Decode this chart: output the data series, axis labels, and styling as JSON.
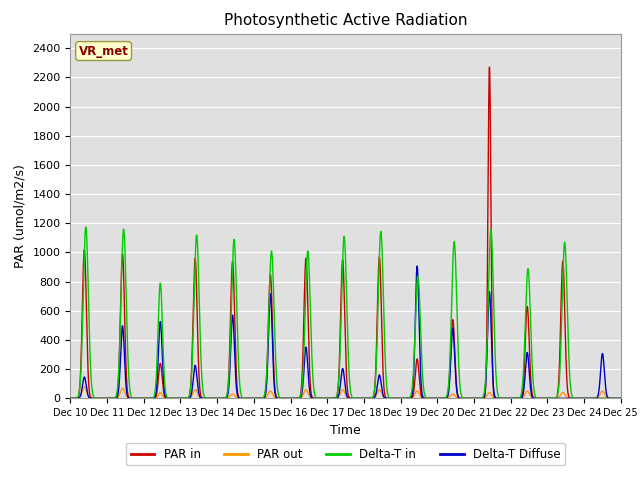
{
  "title": "Photosynthetic Active Radiation",
  "xlabel": "Time",
  "ylabel": "PAR (umol/m2/s)",
  "ylim": [
    0,
    2500
  ],
  "yticks": [
    0,
    200,
    400,
    600,
    800,
    1000,
    1200,
    1400,
    1600,
    1800,
    2000,
    2200,
    2400
  ],
  "background_color": "#e0e0e0",
  "legend_labels": [
    "PAR in",
    "PAR out",
    "Delta-T in",
    "Delta-T Diffuse"
  ],
  "legend_colors": [
    "#cc0000",
    "#ff9900",
    "#00cc00",
    "#0000cc"
  ],
  "station_label": "VR_met",
  "station_label_color": "#880000",
  "station_box_color": "#ffffcc",
  "x_tick_labels": [
    "Dec 10",
    "Dec 11",
    "Dec 12",
    "Dec 13",
    "Dec 14",
    "Dec 15",
    "Dec 16",
    "Dec 17",
    "Dec 18",
    "Dec 19",
    "Dec 20",
    "Dec 21",
    "Dec 22",
    "Dec 23",
    "Dec 24",
    "Dec 25"
  ],
  "n_days": 15,
  "colors": {
    "PAR_in": "#cc0000",
    "PAR_out": "#ff9900",
    "Delta_T_in": "#00cc00",
    "Delta_T_Diffuse": "#0000cc"
  },
  "par_in_peaks": [
    1020,
    990,
    240,
    960,
    940,
    850,
    960,
    950,
    970,
    270,
    540,
    2270,
    630,
    940,
    0
  ],
  "par_out_peaks": [
    80,
    70,
    40,
    60,
    30,
    50,
    60,
    60,
    60,
    50,
    30,
    40,
    50,
    40,
    50
  ],
  "dt_in_peaks": [
    1175,
    1160,
    790,
    1120,
    1090,
    1010,
    1010,
    1110,
    1145,
    840,
    1075,
    1160,
    890,
    1070,
    0
  ],
  "dt_diff_peaks": [
    100,
    340,
    360,
    155,
    390,
    490,
    240,
    140,
    110,
    620,
    330,
    500,
    215,
    0,
    210
  ],
  "par_in_offsets": [
    0.38,
    0.42,
    0.45,
    0.4,
    0.42,
    0.45,
    0.42,
    0.42,
    0.42,
    0.45,
    0.42,
    0.42,
    0.45,
    0.42,
    0.5
  ],
  "dt_in_offsets": [
    0.42,
    0.45,
    0.45,
    0.44,
    0.46,
    0.48,
    0.47,
    0.46,
    0.46,
    0.47,
    0.46,
    0.46,
    0.47,
    0.47,
    0.5
  ],
  "par_in_widths": [
    0.055,
    0.055,
    0.05,
    0.055,
    0.055,
    0.055,
    0.055,
    0.055,
    0.055,
    0.05,
    0.055,
    0.04,
    0.055,
    0.055,
    0.05
  ],
  "dt_in_widths": [
    0.07,
    0.07,
    0.06,
    0.07,
    0.07,
    0.07,
    0.07,
    0.07,
    0.07,
    0.07,
    0.07,
    0.07,
    0.07,
    0.07,
    0.07
  ],
  "dt_diff_widths": [
    0.04,
    0.04,
    0.04,
    0.04,
    0.04,
    0.04,
    0.04,
    0.04,
    0.04,
    0.04,
    0.04,
    0.04,
    0.04,
    0.04,
    0.04
  ],
  "par_out_widths": [
    0.06,
    0.06,
    0.05,
    0.06,
    0.06,
    0.06,
    0.06,
    0.06,
    0.06,
    0.06,
    0.06,
    0.06,
    0.06,
    0.06,
    0.06
  ]
}
